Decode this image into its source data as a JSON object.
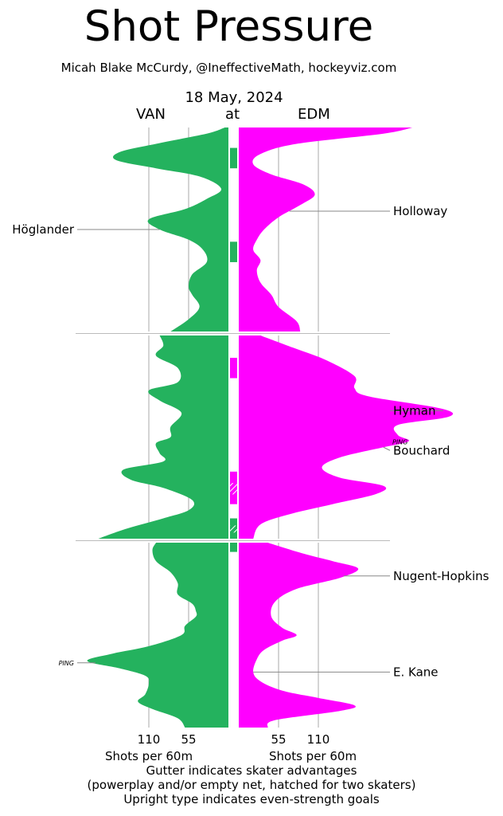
{
  "title": "Shot Pressure",
  "subtitle": "Micah Blake McCurdy, @IneffectiveMath, hockeyviz.com",
  "date": "18 May, 2024",
  "away_team": "VAN",
  "at_label": "at",
  "home_team": "EDM",
  "colors": {
    "away": "#24b25e",
    "home": "#ff00ff",
    "grid": "#aaaaaa",
    "label_line": "#888888"
  },
  "axis_title": "Shots per 60m",
  "footnotes": [
    "Gutter indicates skater advantages",
    "(powerplay and/or empty net, hatched for two skaters)",
    "Upright type indicates even-strength goals"
  ],
  "chart_data": {
    "type": "area",
    "orientation": "vertical game time, mirrored",
    "periods": 3,
    "tick_labels_away": [
      "110",
      "55"
    ],
    "tick_labels_home": [
      "55",
      "110"
    ],
    "ticks": [
      110,
      55
    ],
    "x_max": 190,
    "series": [
      {
        "name": "VAN",
        "side": "left",
        "periods": [
          [
            [
              0,
              5
            ],
            [
              0.03,
              30
            ],
            [
              0.08,
              100
            ],
            [
              0.12,
              150
            ],
            [
              0.16,
              155
            ],
            [
              0.2,
              100
            ],
            [
              0.24,
              40
            ],
            [
              0.3,
              10
            ],
            [
              0.35,
              30
            ],
            [
              0.4,
              60
            ],
            [
              0.45,
              110
            ],
            [
              0.5,
              95
            ],
            [
              0.55,
              55
            ],
            [
              0.6,
              35
            ],
            [
              0.66,
              30
            ],
            [
              0.72,
              50
            ],
            [
              0.78,
              55
            ],
            [
              0.82,
              50
            ],
            [
              0.88,
              40
            ],
            [
              0.94,
              55
            ],
            [
              1,
              80
            ]
          ],
          [
            [
              0,
              95
            ],
            [
              0.05,
              90
            ],
            [
              0.1,
              100
            ],
            [
              0.16,
              70
            ],
            [
              0.23,
              70
            ],
            [
              0.27,
              110
            ],
            [
              0.32,
              95
            ],
            [
              0.38,
              65
            ],
            [
              0.45,
              80
            ],
            [
              0.5,
              80
            ],
            [
              0.53,
              100
            ],
            [
              0.58,
              95
            ],
            [
              0.62,
              90
            ],
            [
              0.66,
              145
            ],
            [
              0.71,
              135
            ],
            [
              0.75,
              90
            ],
            [
              0.81,
              50
            ],
            [
              0.86,
              55
            ],
            [
              0.9,
              90
            ],
            [
              0.95,
              140
            ],
            [
              1,
              180
            ]
          ],
          [
            [
              0,
              100
            ],
            [
              0.04,
              105
            ],
            [
              0.1,
              100
            ],
            [
              0.16,
              80
            ],
            [
              0.22,
              70
            ],
            [
              0.28,
              70
            ],
            [
              0.33,
              50
            ],
            [
              0.37,
              45
            ],
            [
              0.4,
              45
            ],
            [
              0.45,
              60
            ],
            [
              0.5,
              65
            ],
            [
              0.56,
              110
            ],
            [
              0.6,
              160
            ],
            [
              0.64,
              195
            ],
            [
              0.68,
              150
            ],
            [
              0.72,
              115
            ],
            [
              0.76,
              110
            ],
            [
              0.82,
              115
            ],
            [
              0.86,
              125
            ],
            [
              0.9,
              105
            ],
            [
              0.95,
              70
            ],
            [
              1,
              60
            ]
          ]
        ]
      },
      {
        "name": "EDM",
        "side": "right",
        "periods": [
          [
            [
              0,
              240
            ],
            [
              0.03,
              200
            ],
            [
              0.08,
              80
            ],
            [
              0.13,
              30
            ],
            [
              0.18,
              20
            ],
            [
              0.23,
              45
            ],
            [
              0.28,
              90
            ],
            [
              0.33,
              105
            ],
            [
              0.38,
              85
            ],
            [
              0.44,
              55
            ],
            [
              0.5,
              35
            ],
            [
              0.55,
              25
            ],
            [
              0.6,
              20
            ],
            [
              0.65,
              30
            ],
            [
              0.7,
              25
            ],
            [
              0.76,
              30
            ],
            [
              0.82,
              45
            ],
            [
              0.88,
              55
            ],
            [
              0.95,
              80
            ],
            [
              1,
              85
            ]
          ],
          [
            [
              0,
              30
            ],
            [
              0.06,
              75
            ],
            [
              0.12,
              120
            ],
            [
              0.2,
              160
            ],
            [
              0.26,
              160
            ],
            [
              0.3,
              180
            ],
            [
              0.36,
              280
            ],
            [
              0.4,
              290
            ],
            [
              0.44,
              220
            ],
            [
              0.49,
              220
            ],
            [
              0.52,
              235
            ],
            [
              0.55,
              200
            ],
            [
              0.6,
              140
            ],
            [
              0.65,
              115
            ],
            [
              0.7,
              140
            ],
            [
              0.74,
              200
            ],
            [
              0.78,
              190
            ],
            [
              0.83,
              130
            ],
            [
              0.88,
              70
            ],
            [
              0.93,
              30
            ],
            [
              1,
              20
            ]
          ],
          [
            [
              0,
              40
            ],
            [
              0.06,
              90
            ],
            [
              0.1,
              130
            ],
            [
              0.14,
              165
            ],
            [
              0.19,
              140
            ],
            [
              0.25,
              80
            ],
            [
              0.32,
              50
            ],
            [
              0.4,
              45
            ],
            [
              0.46,
              60
            ],
            [
              0.5,
              80
            ],
            [
              0.53,
              60
            ],
            [
              0.58,
              35
            ],
            [
              0.63,
              25
            ],
            [
              0.7,
              20
            ],
            [
              0.75,
              30
            ],
            [
              0.8,
              60
            ],
            [
              0.84,
              110
            ],
            [
              0.88,
              160
            ],
            [
              0.91,
              140
            ],
            [
              0.96,
              50
            ],
            [
              1,
              40
            ]
          ]
        ]
      }
    ],
    "gutter_segments": [
      {
        "period": 1,
        "team": "VAN",
        "start": 0.1,
        "end": 0.2,
        "hatched": false
      },
      {
        "period": 1,
        "team": "VAN",
        "start": 0.56,
        "end": 0.66,
        "hatched": false
      },
      {
        "period": 2,
        "team": "EDM",
        "start": 0.11,
        "end": 0.21,
        "hatched": false
      },
      {
        "period": 2,
        "team": "EDM",
        "start": 0.67,
        "end": 0.83,
        "hatched": true
      },
      {
        "period": 2,
        "team": "VAN",
        "start": 0.9,
        "end": 1.0,
        "hatched": true
      },
      {
        "period": 3,
        "team": "VAN",
        "start": 0.0,
        "end": 0.05,
        "hatched": false
      }
    ],
    "goals": [
      {
        "label": "Höglander",
        "team": "VAN",
        "period": 1,
        "time": 0.5,
        "upright": true,
        "note": ""
      },
      {
        "label": "Holloway",
        "team": "EDM",
        "period": 1,
        "time": 0.41,
        "upright": true,
        "note": ""
      },
      {
        "label": "Hyman",
        "team": "EDM",
        "period": 2,
        "time": 0.37,
        "upright": true,
        "note": ""
      },
      {
        "label": "Bouchard",
        "team": "EDM",
        "period": 2,
        "time": 0.55,
        "upright": true,
        "note": "PING"
      },
      {
        "label": "Nugent-Hopkins",
        "team": "EDM",
        "period": 3,
        "time": 0.18,
        "upright": true,
        "note": ""
      },
      {
        "label": "E. Kane",
        "team": "EDM",
        "period": 3,
        "time": 0.7,
        "upright": true,
        "note": ""
      },
      {
        "label": "",
        "team": "VAN",
        "period": 3,
        "time": 0.65,
        "upright": true,
        "note": "PING"
      }
    ]
  }
}
